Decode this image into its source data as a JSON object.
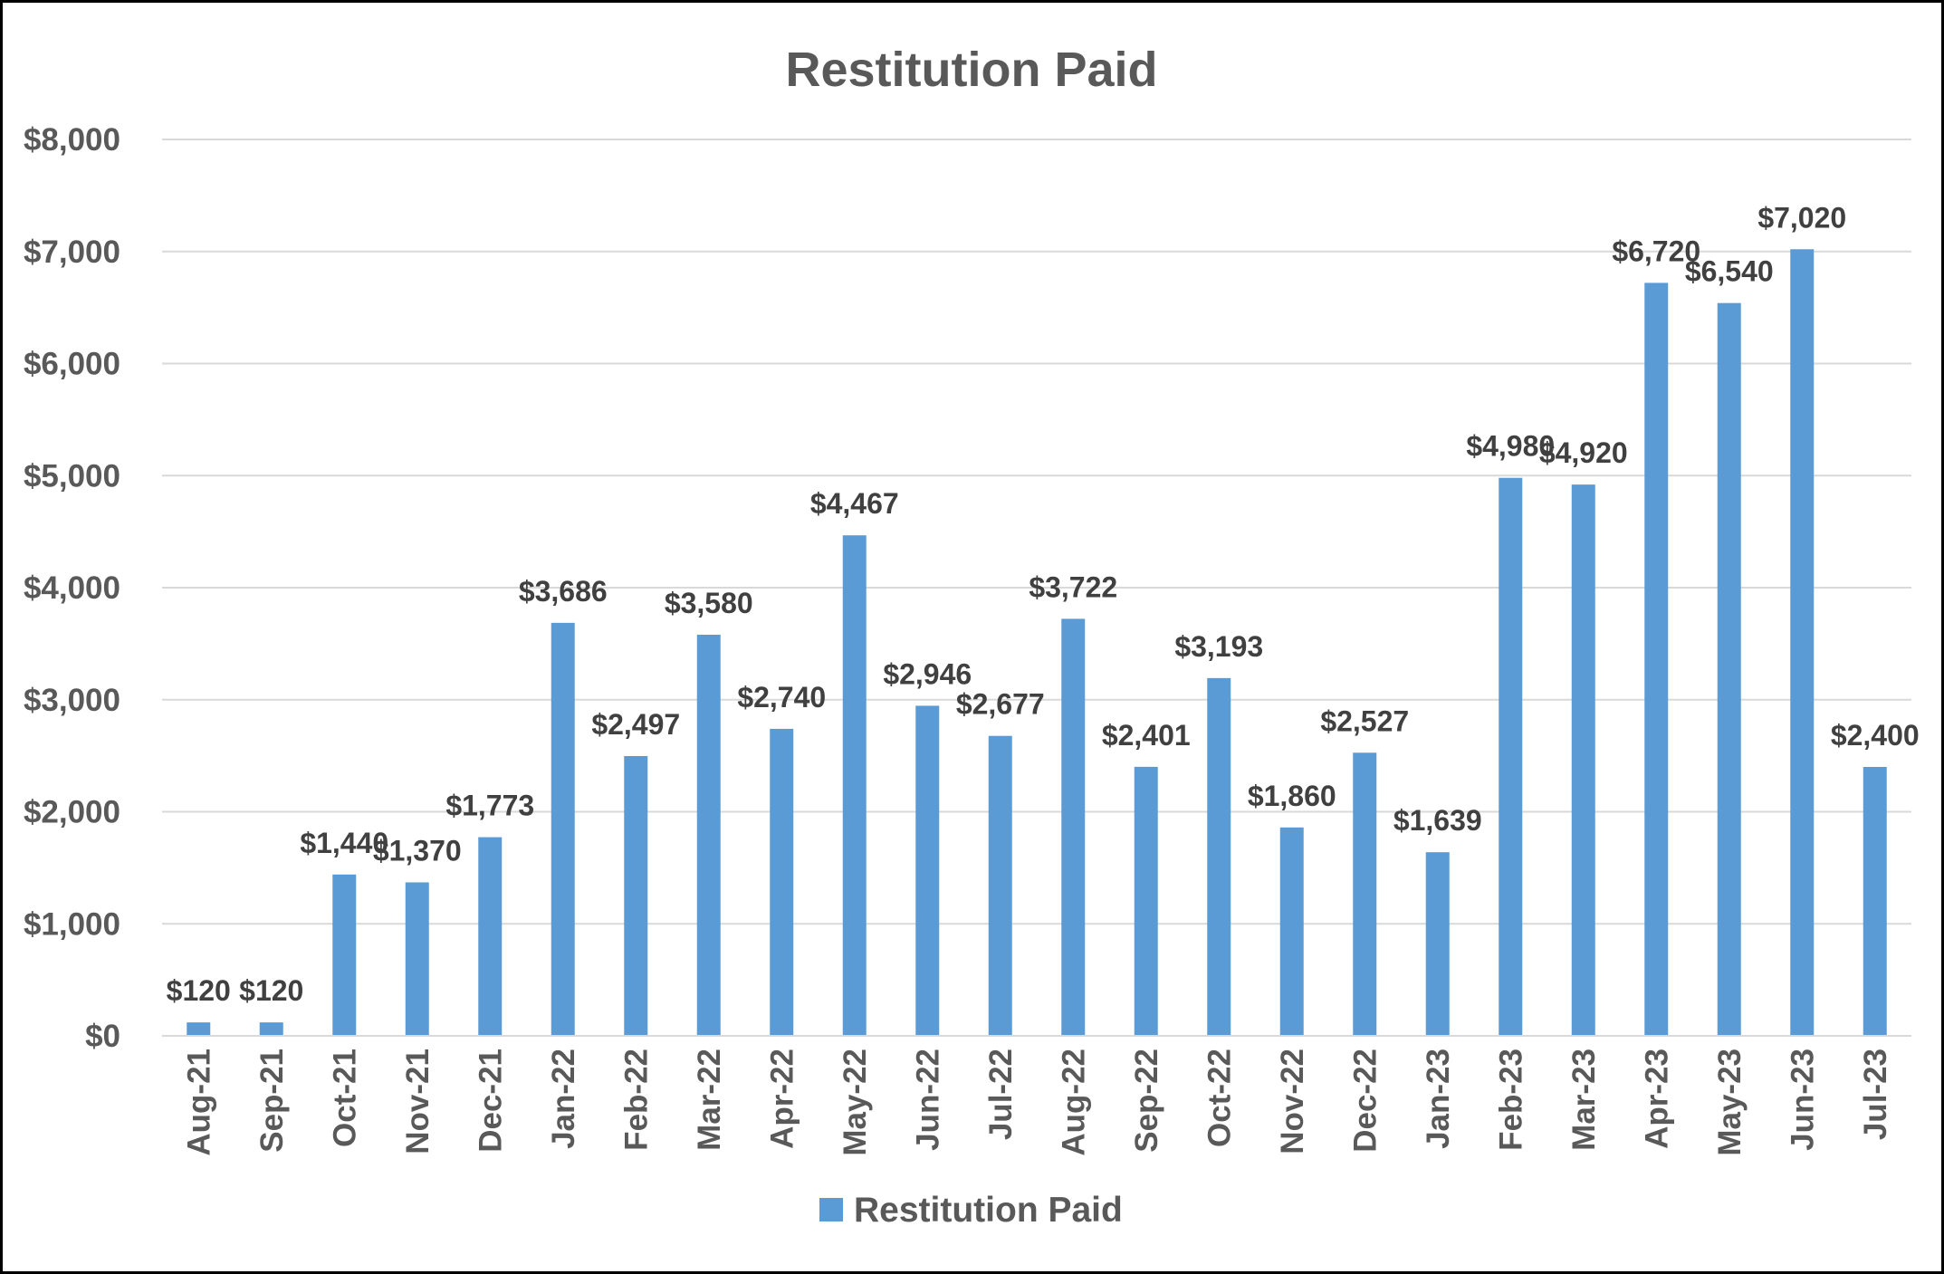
{
  "chart_data": {
    "type": "bar",
    "title": "Restitution Paid",
    "xlabel": "",
    "ylabel": "",
    "ylim": [
      0,
      8000
    ],
    "y_ticks": [
      "$0",
      "$1,000",
      "$2,000",
      "$3,000",
      "$4,000",
      "$5,000",
      "$6,000",
      "$7,000",
      "$8,000"
    ],
    "grid": true,
    "legend_position": "bottom",
    "categories": [
      "Aug-21",
      "Sep-21",
      "Oct-21",
      "Nov-21",
      "Dec-21",
      "Jan-22",
      "Feb-22",
      "Mar-22",
      "Apr-22",
      "May-22",
      "Jun-22",
      "Jul-22",
      "Aug-22",
      "Sep-22",
      "Oct-22",
      "Nov-22",
      "Dec-22",
      "Jan-23",
      "Feb-23",
      "Mar-23",
      "Apr-23",
      "May-23",
      "Jun-23",
      "Jul-23"
    ],
    "series": [
      {
        "name": "Restitution Paid",
        "color": "#5B9BD5",
        "values": [
          120,
          120,
          1440,
          1370,
          1773,
          3686,
          2497,
          3580,
          2740,
          4467,
          2946,
          2677,
          3722,
          2401,
          3193,
          1860,
          2527,
          1639,
          4980,
          4920,
          6720,
          6540,
          7020,
          2400
        ],
        "labels": [
          "$120",
          "$120",
          "$1,440",
          "$1,370",
          "$1,773",
          "$3,686",
          "$2,497",
          "$3,580",
          "$2,740",
          "$4,467",
          "$2,946",
          "$2,677",
          "$3,722",
          "$2,401",
          "$3,193",
          "$1,860",
          "$2,527",
          "$1,639",
          "$4,980",
          "$4,920",
          "$6,720",
          "$6,540",
          "$7,020",
          "$2,400"
        ]
      }
    ]
  }
}
